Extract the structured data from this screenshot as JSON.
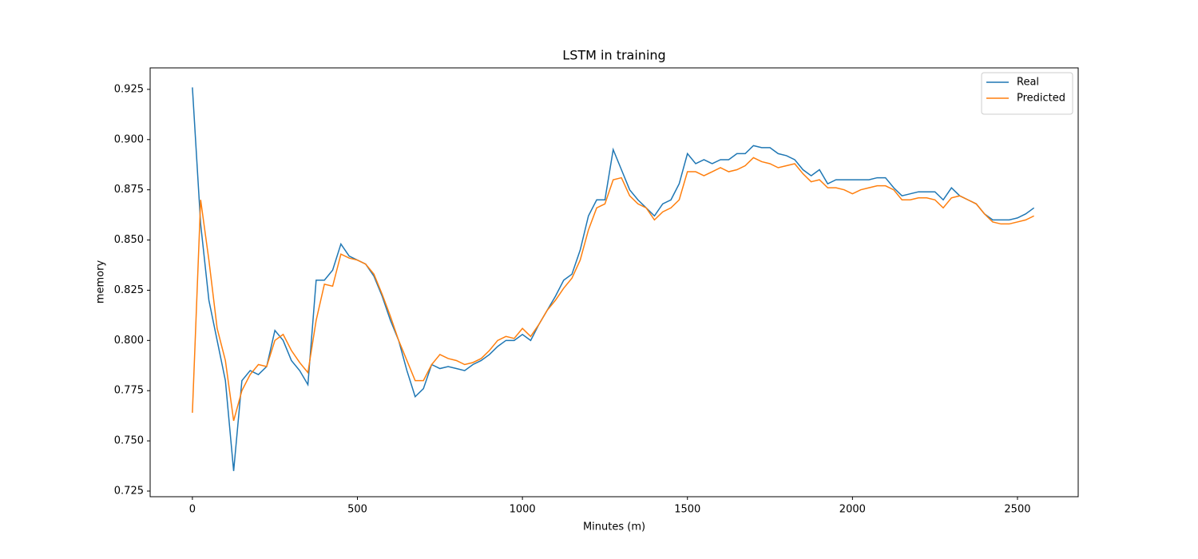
{
  "chart_data": {
    "type": "line",
    "title": "LSTM in training",
    "x_label": "Minutes (m)",
    "y_label": "memory",
    "x": [
      0,
      25,
      50,
      75,
      100,
      125,
      150,
      175,
      200,
      225,
      250,
      275,
      300,
      325,
      350,
      375,
      400,
      425,
      450,
      475,
      500,
      525,
      550,
      575,
      600,
      625,
      650,
      675,
      700,
      725,
      750,
      775,
      800,
      825,
      850,
      875,
      900,
      925,
      950,
      975,
      1000,
      1025,
      1050,
      1075,
      1100,
      1125,
      1150,
      1175,
      1200,
      1225,
      1250,
      1275,
      1300,
      1325,
      1350,
      1375,
      1400,
      1425,
      1450,
      1475,
      1500,
      1525,
      1550,
      1575,
      1600,
      1625,
      1650,
      1675,
      1700,
      1725,
      1750,
      1775,
      1800,
      1825,
      1850,
      1875,
      1900,
      1925,
      1950,
      1975,
      2000,
      2025,
      2050,
      2075,
      2100,
      2125,
      2150,
      2175,
      2200,
      2225,
      2250,
      2275,
      2300,
      2325,
      2350,
      2375,
      2400,
      2425,
      2450,
      2475,
      2500,
      2525,
      2550
    ],
    "series": [
      {
        "name": "Real",
        "color": "#1f77b4",
        "values": [
          0.926,
          0.858,
          0.82,
          0.8,
          0.78,
          0.735,
          0.78,
          0.785,
          0.783,
          0.787,
          0.805,
          0.8,
          0.79,
          0.785,
          0.778,
          0.83,
          0.83,
          0.835,
          0.848,
          0.842,
          0.84,
          0.838,
          0.832,
          0.822,
          0.81,
          0.8,
          0.785,
          0.772,
          0.776,
          0.788,
          0.786,
          0.787,
          0.786,
          0.785,
          0.788,
          0.79,
          0.793,
          0.797,
          0.8,
          0.8,
          0.803,
          0.8,
          0.808,
          0.815,
          0.822,
          0.83,
          0.833,
          0.845,
          0.862,
          0.87,
          0.87,
          0.895,
          0.885,
          0.875,
          0.87,
          0.866,
          0.862,
          0.868,
          0.87,
          0.878,
          0.893,
          0.888,
          0.89,
          0.888,
          0.89,
          0.89,
          0.893,
          0.893,
          0.897,
          0.896,
          0.896,
          0.893,
          0.892,
          0.89,
          0.885,
          0.882,
          0.885,
          0.878,
          0.88,
          0.88,
          0.88,
          0.88,
          0.88,
          0.881,
          0.881,
          0.876,
          0.872,
          0.873,
          0.874,
          0.874,
          0.874,
          0.87,
          0.876,
          0.872,
          0.87,
          0.868,
          0.863,
          0.86,
          0.86,
          0.86,
          0.861,
          0.863,
          0.866
        ]
      },
      {
        "name": "Predicted",
        "color": "#ff7f0e",
        "values": [
          0.764,
          0.87,
          0.84,
          0.806,
          0.79,
          0.76,
          0.775,
          0.783,
          0.788,
          0.787,
          0.8,
          0.803,
          0.795,
          0.789,
          0.784,
          0.81,
          0.828,
          0.827,
          0.843,
          0.841,
          0.84,
          0.838,
          0.833,
          0.823,
          0.812,
          0.8,
          0.79,
          0.78,
          0.78,
          0.788,
          0.793,
          0.791,
          0.79,
          0.788,
          0.789,
          0.791,
          0.795,
          0.8,
          0.802,
          0.801,
          0.806,
          0.802,
          0.808,
          0.815,
          0.82,
          0.826,
          0.831,
          0.84,
          0.855,
          0.866,
          0.868,
          0.88,
          0.881,
          0.872,
          0.868,
          0.866,
          0.86,
          0.864,
          0.866,
          0.87,
          0.884,
          0.884,
          0.882,
          0.884,
          0.886,
          0.884,
          0.885,
          0.887,
          0.891,
          0.889,
          0.888,
          0.886,
          0.887,
          0.888,
          0.883,
          0.879,
          0.88,
          0.876,
          0.876,
          0.875,
          0.873,
          0.875,
          0.876,
          0.877,
          0.877,
          0.875,
          0.87,
          0.87,
          0.871,
          0.871,
          0.87,
          0.866,
          0.871,
          0.872,
          0.87,
          0.868,
          0.863,
          0.859,
          0.858,
          0.858,
          0.859,
          0.86,
          0.862
        ]
      }
    ],
    "xlim": [
      -128,
      2684
    ],
    "ylim": [
      0.7222,
      0.9357
    ],
    "xticks": [
      0,
      500,
      1000,
      1500,
      2000,
      2500
    ],
    "yticks": [
      0.725,
      {
        "value": 0.75,
        "label": "0.750"
      },
      0.775,
      {
        "value": 0.8,
        "label": "0.800"
      },
      0.825,
      {
        "value": 0.85,
        "label": "0.850"
      },
      0.875,
      {
        "value": 0.9,
        "label": "0.900"
      },
      0.925
    ],
    "grid": false,
    "legend": "upper right"
  }
}
